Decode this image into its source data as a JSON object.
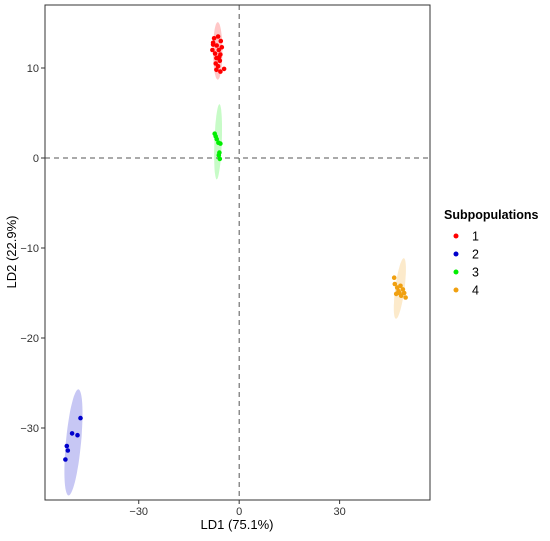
{
  "chart_data": {
    "type": "scatter",
    "xlabel": "LD1 (75.1%)",
    "ylabel": "LD2 (22.9%)",
    "xlim": [
      -58,
      57
    ],
    "ylim": [
      -38,
      17
    ],
    "xticks": [
      -30,
      0,
      30
    ],
    "yticks": [
      -30,
      -20,
      -10,
      0,
      10
    ],
    "grid": false,
    "reference_lines": {
      "x": 0,
      "y": 0,
      "style": "dashed"
    },
    "legend": {
      "title": "Subpopulations",
      "placement": "right"
    },
    "series": [
      {
        "name": "1",
        "color": "#ff0000",
        "ellipse": {
          "cx": -6.4,
          "cy": 11.9,
          "rx": 1.4,
          "ry": 3.2,
          "angle": 90
        },
        "points": [
          [
            -7.5,
            13.3
          ],
          [
            -6.3,
            13.5
          ],
          [
            -5.5,
            13.0
          ],
          [
            -7.8,
            12.8
          ],
          [
            -6.7,
            12.5
          ],
          [
            -5.2,
            12.3
          ],
          [
            -8.0,
            12.0
          ],
          [
            -6.1,
            12.0
          ],
          [
            -7.2,
            11.6
          ],
          [
            -5.6,
            11.5
          ],
          [
            -6.8,
            11.1
          ],
          [
            -5.8,
            10.8
          ],
          [
            -7.0,
            10.5
          ],
          [
            -6.3,
            10.2
          ],
          [
            -4.5,
            9.9
          ],
          [
            -5.6,
            9.6
          ],
          [
            -6.8,
            9.8
          ],
          [
            -7.8,
            12.6
          ],
          [
            -6.0,
            11.2
          ]
        ]
      },
      {
        "name": "2",
        "color": "#0000cc",
        "ellipse": {
          "cx": -49.5,
          "cy": -31.6,
          "rx": 2.2,
          "ry": 6.1,
          "angle": 74
        },
        "points": [
          [
            -47.4,
            -28.9
          ],
          [
            -48.3,
            -30.8
          ],
          [
            -49.9,
            -30.6
          ],
          [
            -51.5,
            -32.0
          ],
          [
            -51.2,
            -32.5
          ],
          [
            -51.9,
            -33.5
          ]
        ]
      },
      {
        "name": "3",
        "color": "#00ee00",
        "ellipse": {
          "cx": -6.3,
          "cy": 1.8,
          "rx": 1.1,
          "ry": 4.2,
          "angle": 84
        },
        "points": [
          [
            -7.3,
            2.7
          ],
          [
            -6.7,
            2.1
          ],
          [
            -6.2,
            1.7
          ],
          [
            -5.6,
            1.6
          ],
          [
            -5.9,
            0.6
          ],
          [
            -6.1,
            0.3
          ],
          [
            -5.8,
            -0.1
          ],
          [
            -7.0,
            2.4
          ]
        ]
      },
      {
        "name": "4",
        "color": "#f0a010",
        "ellipse": {
          "cx": 48.0,
          "cy": -14.5,
          "rx": 3.6,
          "ry": 1.3,
          "angle": -22
        },
        "points": [
          [
            46.3,
            -13.3
          ],
          [
            46.5,
            -14.0
          ],
          [
            47.2,
            -14.4
          ],
          [
            47.6,
            -14.8
          ],
          [
            46.9,
            -15.1
          ],
          [
            48.2,
            -14.2
          ],
          [
            48.9,
            -14.6
          ],
          [
            48.4,
            -15.3
          ],
          [
            49.3,
            -15.0
          ],
          [
            49.7,
            -15.5
          ],
          [
            47.9,
            -15.0
          ]
        ]
      }
    ]
  }
}
